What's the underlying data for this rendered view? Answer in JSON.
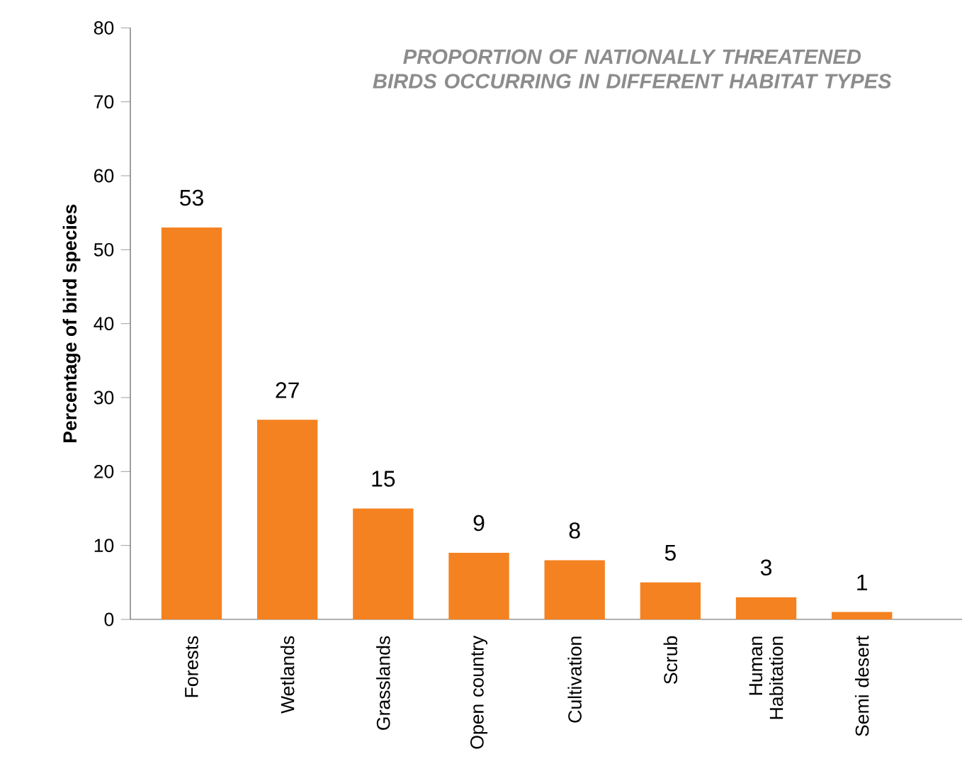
{
  "chart_data": {
    "type": "bar",
    "title": "PROPORTION OF NATIONALLY THREATENED BIRDS OCCURRING IN DIFFERENT HABITAT TYPES",
    "ylabel": "Percentage of bird species",
    "categories": [
      "Forests",
      "Wetlands",
      "Grasslands",
      "Open country",
      "Cultivation",
      "Scrub",
      "Human Habitation",
      "Semi desert"
    ],
    "values": [
      53,
      27,
      15,
      9,
      8,
      5,
      3,
      1
    ],
    "color": "#f58220",
    "ylim": [
      0,
      80
    ],
    "yticks": [
      0,
      10,
      20,
      30,
      40,
      50,
      60,
      70,
      80
    ],
    "data_labels": true,
    "grid": false
  }
}
